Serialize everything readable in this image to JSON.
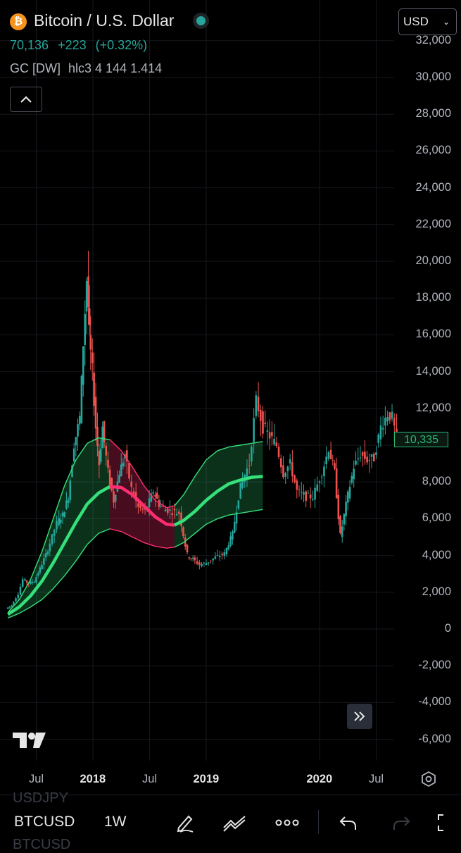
{
  "header": {
    "coin_glyph": "₿",
    "title": "Bitcoin / U.S. Dollar",
    "price": "70,136",
    "change": "+223",
    "change_pct": "(+0.32%)",
    "indicator_name": "GC [DW]",
    "indicator_params": "hlc3 4 144 1.414",
    "currency": "USD"
  },
  "toolbar": {
    "symbol": "BTCUSD",
    "interval": "1W",
    "ghost_above": "USDJPY",
    "ghost_below": "BTCUSD"
  },
  "colors": {
    "up": "#26a69a",
    "down": "#ef5350",
    "band_green": "#35e07a",
    "band_red": "#ff2d6f",
    "live_dot": "#26a69a"
  },
  "chart_data": {
    "type": "candlestick-with-bands",
    "symbol": "BTCUSD",
    "interval": "1W",
    "y_ticks": [
      32000,
      30000,
      28000,
      26000,
      24000,
      22000,
      20000,
      18000,
      16000,
      14000,
      12000,
      10000,
      8000,
      6000,
      4000,
      2000,
      0,
      -2000,
      -4000,
      -6000
    ],
    "y_tick_labels": [
      "32,000",
      "30,000",
      "28,000",
      "26,000",
      "24,000",
      "22,000",
      "20,000",
      "18,000",
      "16,000",
      "14,000",
      "12,000",
      "",
      "8,000",
      "6,000",
      "4,000",
      "2,000",
      "0",
      "-2,000",
      "-4,000",
      "-6,000"
    ],
    "ylim": [
      -7000,
      33000
    ],
    "x_labels": [
      {
        "label": "Jul",
        "t": 2017.5,
        "bold": false
      },
      {
        "label": "2018",
        "t": 2018.0,
        "bold": true
      },
      {
        "label": "Jul",
        "t": 2018.5,
        "bold": false
      },
      {
        "label": "2019",
        "t": 2019.0,
        "bold": true
      },
      {
        "label": "2020",
        "t": 2020.0,
        "bold": true
      },
      {
        "label": "Jul",
        "t": 2020.5,
        "bold": false
      }
    ],
    "xlim": [
      2017.25,
      2020.85
    ],
    "last_price": "10,335",
    "last_price_value": 10335,
    "price_path": [
      [
        2017.25,
        1100
      ],
      [
        2017.3,
        1300
      ],
      [
        2017.36,
        1900
      ],
      [
        2017.4,
        2700
      ],
      [
        2017.45,
        2500
      ],
      [
        2017.5,
        2600
      ],
      [
        2017.55,
        3300
      ],
      [
        2017.62,
        4300
      ],
      [
        2017.7,
        5800
      ],
      [
        2017.75,
        6200
      ],
      [
        2017.8,
        7200
      ],
      [
        2017.85,
        10000
      ],
      [
        2017.9,
        11500
      ],
      [
        2017.93,
        15500
      ],
      [
        2017.96,
        19000
      ],
      [
        2017.98,
        16000
      ],
      [
        2018.01,
        14000
      ],
      [
        2018.04,
        11000
      ],
      [
        2018.07,
        9000
      ],
      [
        2018.1,
        11000
      ],
      [
        2018.15,
        8500
      ],
      [
        2018.2,
        7000
      ],
      [
        2018.25,
        8500
      ],
      [
        2018.3,
        9500
      ],
      [
        2018.36,
        7600
      ],
      [
        2018.42,
        6600
      ],
      [
        2018.48,
        6400
      ],
      [
        2018.55,
        7500
      ],
      [
        2018.6,
        6800
      ],
      [
        2018.66,
        6500
      ],
      [
        2018.72,
        6400
      ],
      [
        2018.78,
        6300
      ],
      [
        2018.85,
        4000
      ],
      [
        2018.9,
        3800
      ],
      [
        2018.96,
        3500
      ],
      [
        2019.02,
        3600
      ],
      [
        2019.1,
        3900
      ],
      [
        2019.18,
        4100
      ],
      [
        2019.25,
        5200
      ],
      [
        2019.32,
        7800
      ],
      [
        2019.4,
        9000
      ],
      [
        2019.46,
        12500
      ],
      [
        2019.52,
        11000
      ],
      [
        2019.58,
        10500
      ],
      [
        2019.64,
        10000
      ],
      [
        2019.7,
        8500
      ],
      [
        2019.76,
        9000
      ],
      [
        2019.82,
        7500
      ],
      [
        2019.9,
        7200
      ],
      [
        2019.96,
        7200
      ],
      [
        2020.04,
        8500
      ],
      [
        2020.1,
        9800
      ],
      [
        2020.15,
        8500
      ],
      [
        2020.2,
        5000
      ],
      [
        2020.25,
        6800
      ],
      [
        2020.32,
        8800
      ],
      [
        2020.38,
        9500
      ],
      [
        2020.44,
        9200
      ],
      [
        2020.5,
        9300
      ],
      [
        2020.56,
        11000
      ],
      [
        2020.62,
        11700
      ],
      [
        2020.66,
        11500
      ],
      [
        2020.7,
        10335
      ]
    ],
    "band_mid": [
      [
        2017.25,
        800
      ],
      [
        2017.35,
        1200
      ],
      [
        2017.45,
        1800
      ],
      [
        2017.55,
        2600
      ],
      [
        2017.65,
        3600
      ],
      [
        2017.75,
        4700
      ],
      [
        2017.85,
        5800
      ],
      [
        2017.95,
        6800
      ],
      [
        2018.05,
        7400
      ],
      [
        2018.15,
        7750
      ],
      [
        2018.25,
        7700
      ],
      [
        2018.35,
        7300
      ],
      [
        2018.45,
        6700
      ],
      [
        2018.55,
        6100
      ],
      [
        2018.65,
        5700
      ],
      [
        2018.72,
        5650
      ],
      [
        2018.8,
        5900
      ],
      [
        2018.9,
        6400
      ],
      [
        2019.0,
        7000
      ],
      [
        2019.1,
        7500
      ],
      [
        2019.2,
        7900
      ],
      [
        2019.3,
        8100
      ],
      [
        2019.4,
        8250
      ],
      [
        2019.5,
        8300
      ]
    ],
    "band_upper": [
      [
        2017.25,
        900
      ],
      [
        2017.35,
        1600
      ],
      [
        2017.45,
        2700
      ],
      [
        2017.55,
        4200
      ],
      [
        2017.65,
        6000
      ],
      [
        2017.75,
        7800
      ],
      [
        2017.85,
        9200
      ],
      [
        2017.95,
        10100
      ],
      [
        2018.05,
        10400
      ],
      [
        2018.15,
        10300
      ],
      [
        2018.25,
        9700
      ],
      [
        2018.35,
        8800
      ],
      [
        2018.45,
        7800
      ],
      [
        2018.55,
        7000
      ],
      [
        2018.65,
        6600
      ],
      [
        2018.72,
        6700
      ],
      [
        2018.8,
        7300
      ],
      [
        2018.9,
        8300
      ],
      [
        2019.0,
        9200
      ],
      [
        2019.1,
        9700
      ],
      [
        2019.2,
        9900
      ],
      [
        2019.3,
        10000
      ],
      [
        2019.4,
        10100
      ],
      [
        2019.5,
        10200
      ]
    ],
    "band_lower": [
      [
        2017.25,
        600
      ],
      [
        2017.35,
        850
      ],
      [
        2017.45,
        1200
      ],
      [
        2017.55,
        1600
      ],
      [
        2017.65,
        2200
      ],
      [
        2017.75,
        2900
      ],
      [
        2017.85,
        3700
      ],
      [
        2017.95,
        4600
      ],
      [
        2018.05,
        5200
      ],
      [
        2018.15,
        5450
      ],
      [
        2018.25,
        5300
      ],
      [
        2018.35,
        5000
      ],
      [
        2018.45,
        4700
      ],
      [
        2018.55,
        4500
      ],
      [
        2018.65,
        4400
      ],
      [
        2018.72,
        4450
      ],
      [
        2018.8,
        4700
      ],
      [
        2018.9,
        5200
      ],
      [
        2019.0,
        5700
      ],
      [
        2019.1,
        6000
      ],
      [
        2019.2,
        6200
      ],
      [
        2019.3,
        6300
      ],
      [
        2019.4,
        6400
      ],
      [
        2019.5,
        6500
      ]
    ],
    "band_x_offset": 0.0,
    "red_zone": [
      2018.15,
      2018.72
    ]
  }
}
